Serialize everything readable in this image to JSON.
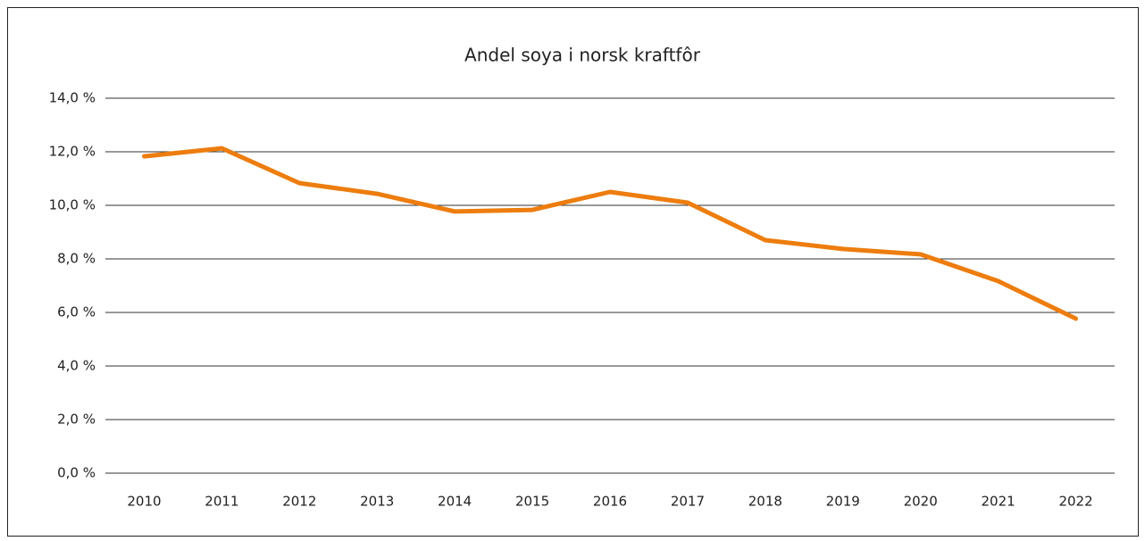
{
  "chart_data": {
    "type": "line",
    "title": "Andel soya i norsk kraftfôr",
    "categories": [
      "2010",
      "2011",
      "2012",
      "2013",
      "2014",
      "2015",
      "2016",
      "2017",
      "2018",
      "2019",
      "2020",
      "2021",
      "2022"
    ],
    "series": [
      {
        "name": "Andel soya",
        "color": "#ed7d0e",
        "values": [
          11.83,
          12.13,
          10.83,
          10.43,
          9.77,
          9.83,
          10.5,
          10.1,
          8.7,
          8.37,
          8.17,
          7.17,
          5.77
        ]
      }
    ],
    "ylim": [
      0,
      14
    ],
    "yticks": [
      {
        "value": 0,
        "label": "0,0 %"
      },
      {
        "value": 2,
        "label": "2,0 %"
      },
      {
        "value": 4,
        "label": "4,0 %"
      },
      {
        "value": 6,
        "label": "6,0 %"
      },
      {
        "value": 8,
        "label": "8,0 %"
      },
      {
        "value": 10,
        "label": "10,0 %"
      },
      {
        "value": 12,
        "label": "12,0 %"
      },
      {
        "value": 14,
        "label": "14,0 %"
      }
    ],
    "grid": true
  }
}
